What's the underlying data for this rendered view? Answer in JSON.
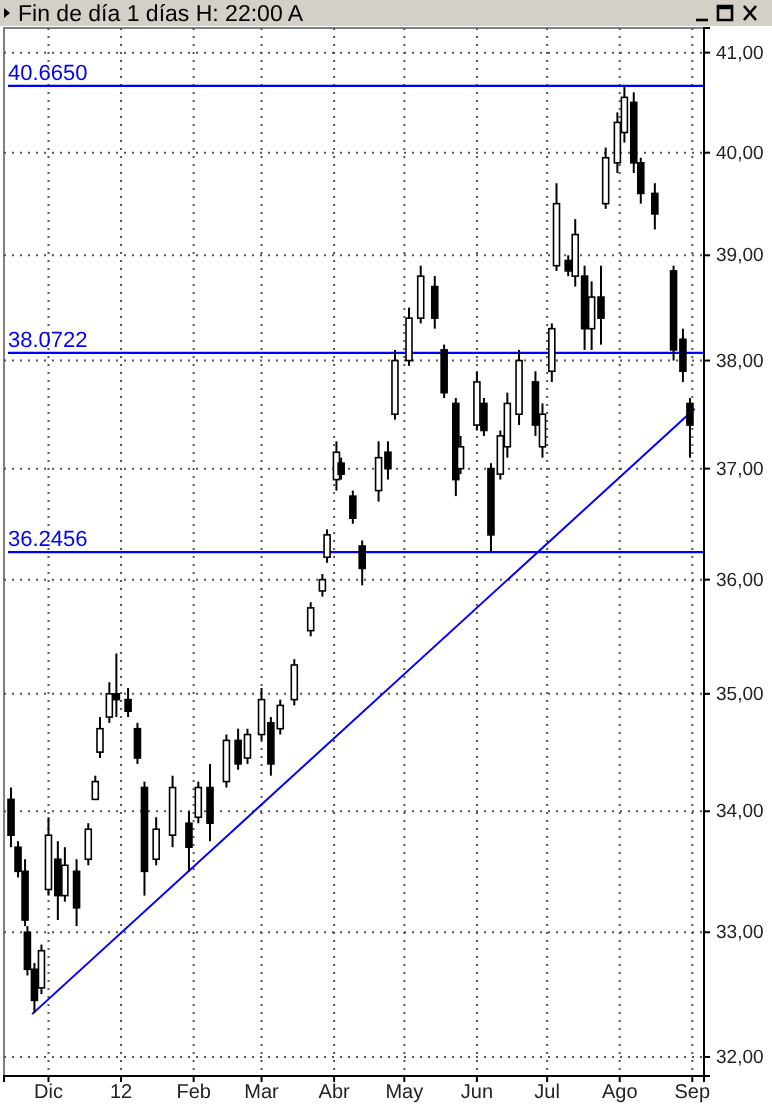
{
  "chart_data": {
    "type": "candlestick",
    "title": "Fin de día 1 días H: 22:00 A",
    "x": [
      "2011-11-15",
      "2011-11-18",
      "2011-11-21",
      "2011-11-22",
      "2011-11-25",
      "2011-11-28",
      "2011-12-01",
      "2011-12-05",
      "2011-12-08",
      "2011-12-13",
      "2011-12-18",
      "2011-12-21",
      "2011-12-23",
      "2011-12-27",
      "2011-12-30",
      "2012-01-04",
      "2012-01-08",
      "2012-01-11",
      "2012-01-16",
      "2012-01-23",
      "2012-01-30",
      "2012-02-03",
      "2012-02-08",
      "2012-02-15",
      "2012-02-20",
      "2012-02-24",
      "2012-03-01",
      "2012-03-05",
      "2012-03-09",
      "2012-03-15",
      "2012-03-22",
      "2012-03-27",
      "2012-03-29",
      "2012-04-02",
      "2012-04-04",
      "2012-04-09",
      "2012-04-13",
      "2012-04-20",
      "2012-04-24",
      "2012-04-27",
      "2012-05-03",
      "2012-05-08",
      "2012-05-14",
      "2012-05-18",
      "2012-05-23",
      "2012-05-25",
      "2012-06-01",
      "2012-06-04",
      "2012-06-07",
      "2012-06-11",
      "2012-06-14",
      "2012-06-19",
      "2012-06-26",
      "2012-06-29",
      "2012-07-03",
      "2012-07-05",
      "2012-07-10",
      "2012-07-13",
      "2012-07-17",
      "2012-07-20",
      "2012-07-24",
      "2012-07-26",
      "2012-07-31",
      "2012-08-03",
      "2012-08-07",
      "2012-08-10",
      "2012-08-16",
      "2012-08-24",
      "2012-08-28",
      "2012-08-31"
    ],
    "ohlc": [
      [
        34.1,
        34.2,
        33.7,
        33.8
      ],
      [
        33.7,
        33.75,
        33.45,
        33.5
      ],
      [
        33.5,
        33.6,
        33.05,
        33.1
      ],
      [
        33.0,
        33.05,
        32.65,
        32.7
      ],
      [
        32.7,
        32.75,
        32.35,
        32.45
      ],
      [
        32.55,
        32.9,
        32.5,
        32.85
      ],
      [
        33.35,
        33.95,
        33.3,
        33.8
      ],
      [
        33.6,
        33.75,
        33.1,
        33.3
      ],
      [
        33.3,
        33.7,
        33.25,
        33.55
      ],
      [
        33.5,
        33.6,
        33.05,
        33.2
      ],
      [
        33.6,
        33.9,
        33.55,
        33.85
      ],
      [
        34.1,
        34.3,
        34.1,
        34.25
      ],
      [
        34.5,
        34.8,
        34.45,
        34.7
      ],
      [
        34.8,
        35.1,
        34.75,
        35.0
      ],
      [
        35.0,
        35.35,
        34.8,
        34.95
      ],
      [
        34.95,
        35.05,
        34.8,
        34.85
      ],
      [
        34.7,
        34.75,
        34.4,
        34.45
      ],
      [
        34.2,
        34.25,
        33.3,
        33.5
      ],
      [
        33.6,
        33.95,
        33.55,
        33.85
      ],
      [
        33.8,
        34.3,
        33.7,
        34.2
      ],
      [
        33.9,
        34.0,
        33.5,
        33.7
      ],
      [
        33.95,
        34.25,
        33.9,
        34.2
      ],
      [
        34.2,
        34.4,
        33.75,
        33.9
      ],
      [
        34.25,
        34.65,
        34.2,
        34.6
      ],
      [
        34.6,
        34.7,
        34.35,
        34.4
      ],
      [
        34.45,
        34.7,
        34.4,
        34.65
      ],
      [
        34.65,
        35.05,
        34.6,
        34.95
      ],
      [
        34.75,
        34.8,
        34.3,
        34.4
      ],
      [
        34.7,
        34.95,
        34.65,
        34.9
      ],
      [
        34.95,
        35.3,
        34.9,
        35.25
      ],
      [
        35.55,
        35.8,
        35.5,
        35.75
      ],
      [
        35.9,
        36.05,
        35.85,
        36.0
      ],
      [
        36.2,
        36.45,
        36.15,
        36.4
      ],
      [
        36.9,
        37.25,
        36.8,
        37.15
      ],
      [
        37.05,
        37.1,
        36.9,
        36.95
      ],
      [
        36.75,
        36.8,
        36.5,
        36.55
      ],
      [
        36.3,
        36.35,
        35.95,
        36.1
      ],
      [
        36.8,
        37.25,
        36.7,
        37.1
      ],
      [
        37.15,
        37.25,
        36.9,
        37.0
      ],
      [
        37.5,
        38.1,
        37.45,
        38.0
      ],
      [
        38.0,
        38.5,
        37.95,
        38.4
      ],
      [
        38.4,
        38.9,
        38.35,
        38.8
      ],
      [
        38.7,
        38.8,
        38.3,
        38.4
      ],
      [
        38.1,
        38.15,
        37.65,
        37.7
      ],
      [
        37.6,
        37.65,
        36.75,
        36.9
      ],
      [
        37.0,
        37.3,
        36.95,
        37.2
      ],
      [
        37.4,
        37.9,
        37.35,
        37.8
      ],
      [
        37.6,
        37.65,
        37.3,
        37.35
      ],
      [
        37.0,
        37.05,
        36.25,
        36.4
      ],
      [
        36.95,
        37.35,
        36.9,
        37.3
      ],
      [
        37.2,
        37.7,
        37.1,
        37.6
      ],
      [
        37.5,
        38.1,
        37.4,
        38.0
      ],
      [
        37.8,
        37.9,
        37.3,
        37.4
      ],
      [
        37.2,
        37.6,
        37.1,
        37.5
      ],
      [
        37.9,
        38.35,
        37.8,
        38.3
      ],
      [
        38.9,
        39.7,
        38.85,
        39.5
      ],
      [
        38.95,
        39.0,
        38.8,
        38.85
      ],
      [
        38.8,
        39.35,
        38.7,
        39.2
      ],
      [
        38.8,
        38.9,
        38.1,
        38.3
      ],
      [
        38.3,
        38.75,
        38.1,
        38.6
      ],
      [
        38.6,
        38.9,
        38.15,
        38.4
      ],
      [
        39.5,
        40.05,
        39.45,
        39.95
      ],
      [
        39.9,
        40.4,
        39.8,
        40.3
      ],
      [
        40.2,
        40.66,
        40.1,
        40.55
      ],
      [
        40.5,
        40.6,
        39.8,
        39.9
      ],
      [
        39.9,
        39.95,
        39.5,
        39.6
      ],
      [
        39.6,
        39.7,
        39.25,
        39.4
      ],
      [
        38.85,
        38.9,
        38.0,
        38.1
      ],
      [
        38.2,
        38.3,
        37.8,
        37.9
      ],
      [
        37.6,
        37.65,
        37.1,
        37.4
      ]
    ],
    "series": [
      {
        "type": "line",
        "color": "#0000ff",
        "x": [
          "2011-11-24",
          "2012-09-02"
        ],
        "values": [
          32.34,
          37.55
        ]
      }
    ],
    "ref_lines": [
      {
        "axis": "y",
        "value": 40.665,
        "label": "40.6650",
        "color": "#0000ff"
      },
      {
        "axis": "y",
        "value": 38.0722,
        "label": "38.0722",
        "color": "#0000ff"
      },
      {
        "axis": "y",
        "value": 36.2456,
        "label": "36.2456",
        "color": "#0000ff"
      }
    ],
    "log": true,
    "grid": true,
    "ylim": [
      31.85,
      41.25
    ],
    "yticks": [
      {
        "value": 32,
        "label": "32,00"
      },
      {
        "value": 33,
        "label": "33,00"
      },
      {
        "value": 34,
        "label": "34,00"
      },
      {
        "value": 35,
        "label": "35,00"
      },
      {
        "value": 36,
        "label": "36,00"
      },
      {
        "value": 37,
        "label": "37,00"
      },
      {
        "value": 38,
        "label": "38,00"
      },
      {
        "value": 39,
        "label": "39,00"
      },
      {
        "value": 40,
        "label": "40,00"
      },
      {
        "value": 41,
        "label": "41,00"
      }
    ],
    "xlim": [
      "2011-11-12",
      "2012-09-06"
    ],
    "xticks": [
      {
        "value": "2011-12-01",
        "label": "Dic"
      },
      {
        "value": "2012-01-01",
        "label": "12"
      },
      {
        "value": "2012-02-01",
        "label": "Feb"
      },
      {
        "value": "2012-03-01",
        "label": "Mar"
      },
      {
        "value": "2012-04-01",
        "label": "Abr"
      },
      {
        "value": "2012-05-01",
        "label": "May"
      },
      {
        "value": "2012-06-01",
        "label": "Jun"
      },
      {
        "value": "2012-07-01",
        "label": "Jul"
      },
      {
        "value": "2012-08-01",
        "label": "Ago"
      },
      {
        "value": "2012-09-01",
        "label": "Sep"
      }
    ]
  }
}
